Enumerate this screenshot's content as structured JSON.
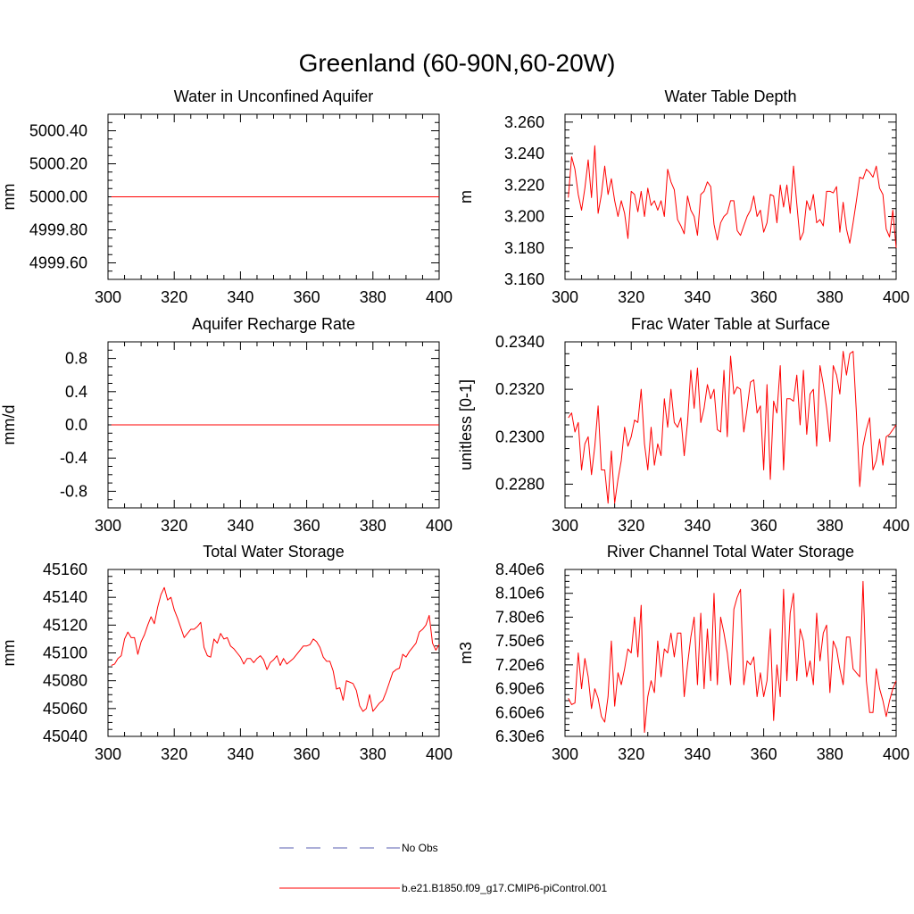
{
  "figure": {
    "title": "Greenland (60-90N,60-20W)"
  },
  "legend": {
    "entries": [
      {
        "label": "No Obs",
        "color": "#5a5fb0",
        "style": "dashed"
      },
      {
        "label": "b.e21.B1850.f09_g17.CMIP6-piControl.001",
        "color": "#ff0000",
        "style": "solid"
      }
    ]
  },
  "chart_data": [
    {
      "type": "line",
      "title": "Water in Unconfined Aquifer",
      "ylabel": "mm",
      "xlim": [
        300,
        400
      ],
      "ylim": [
        4999.5,
        5000.5
      ],
      "xticks": [
        300,
        320,
        340,
        360,
        380,
        400
      ],
      "xtick_labels": [
        "300",
        "320",
        "340",
        "360",
        "380",
        "400"
      ],
      "yticks": [
        4999.6,
        4999.8,
        5000.0,
        5000.2,
        5000.4
      ],
      "ytick_labels": [
        "4999.60",
        "4999.80",
        "5000.00",
        "5000.20",
        "5000.40"
      ],
      "series": [
        {
          "color": "#ff0000",
          "x_start": 301,
          "x_step": 1,
          "values": [
            5000,
            5000,
            5000,
            5000,
            5000,
            5000,
            5000,
            5000,
            5000,
            5000,
            5000,
            5000,
            5000,
            5000,
            5000,
            5000,
            5000,
            5000,
            5000,
            5000,
            5000,
            5000,
            5000,
            5000,
            5000,
            5000,
            5000,
            5000,
            5000,
            5000,
            5000,
            5000,
            5000,
            5000,
            5000,
            5000,
            5000,
            5000,
            5000,
            5000,
            5000,
            5000,
            5000,
            5000,
            5000,
            5000,
            5000,
            5000,
            5000,
            5000,
            5000,
            5000,
            5000,
            5000,
            5000,
            5000,
            5000,
            5000,
            5000,
            5000,
            5000,
            5000,
            5000,
            5000,
            5000,
            5000,
            5000,
            5000,
            5000,
            5000,
            5000,
            5000,
            5000,
            5000,
            5000,
            5000,
            5000,
            5000,
            5000,
            5000,
            5000,
            5000,
            5000,
            5000,
            5000,
            5000,
            5000,
            5000,
            5000,
            5000,
            5000,
            5000,
            5000,
            5000,
            5000,
            5000,
            5000,
            5000,
            5000,
            5000
          ]
        }
      ]
    },
    {
      "type": "line",
      "title": "Water Table Depth",
      "ylabel": "m",
      "xlim": [
        300,
        400
      ],
      "ylim": [
        3.16,
        3.265
      ],
      "xticks": [
        300,
        320,
        340,
        360,
        380,
        400
      ],
      "xtick_labels": [
        "300",
        "320",
        "340",
        "360",
        "380",
        "400"
      ],
      "yticks": [
        3.16,
        3.18,
        3.2,
        3.22,
        3.24,
        3.26
      ],
      "ytick_labels": [
        "3.160",
        "3.180",
        "3.200",
        "3.220",
        "3.240",
        "3.260"
      ],
      "series": [
        {
          "color": "#ff0000",
          "x_start": 301,
          "x_step": 1,
          "values": [
            3.212,
            3.238,
            3.23,
            3.214,
            3.204,
            3.218,
            3.236,
            3.212,
            3.245,
            3.202,
            3.214,
            3.232,
            3.214,
            3.224,
            3.21,
            3.2,
            3.21,
            3.202,
            3.186,
            3.216,
            3.214,
            3.203,
            3.216,
            3.2,
            3.218,
            3.207,
            3.21,
            3.204,
            3.21,
            3.2,
            3.23,
            3.222,
            3.217,
            3.198,
            3.194,
            3.189,
            3.213,
            3.204,
            3.2,
            3.188,
            3.214,
            3.216,
            3.222,
            3.219,
            3.195,
            3.185,
            3.196,
            3.2,
            3.202,
            3.21,
            3.21,
            3.191,
            3.188,
            3.194,
            3.2,
            3.204,
            3.213,
            3.2,
            3.204,
            3.19,
            3.196,
            3.214,
            3.213,
            3.196,
            3.22,
            3.206,
            3.22,
            3.202,
            3.232,
            3.208,
            3.185,
            3.19,
            3.21,
            3.204,
            3.214,
            3.196,
            3.198,
            3.194,
            3.216,
            3.216,
            3.215,
            3.219,
            3.19,
            3.209,
            3.192,
            3.183,
            3.196,
            3.21,
            3.225,
            3.224,
            3.23,
            3.228,
            3.225,
            3.232,
            3.218,
            3.214,
            3.192,
            3.187,
            3.204,
            3.18
          ]
        }
      ]
    },
    {
      "type": "line",
      "title": "Aquifer Recharge Rate",
      "ylabel": "mm/d",
      "xlim": [
        300,
        400
      ],
      "ylim": [
        -1,
        1
      ],
      "xticks": [
        300,
        320,
        340,
        360,
        380,
        400
      ],
      "xtick_labels": [
        "300",
        "320",
        "340",
        "360",
        "380",
        "400"
      ],
      "yticks": [
        -0.8,
        -0.4,
        0.0,
        0.4,
        0.8
      ],
      "ytick_labels": [
        "-0.8",
        "-0.4",
        "0.0",
        "0.4",
        "0.8"
      ],
      "series": [
        {
          "color": "#ff0000",
          "x_start": 301,
          "x_step": 1,
          "values": [
            0,
            0,
            0,
            0,
            0,
            0,
            0,
            0,
            0,
            0,
            0,
            0,
            0,
            0,
            0,
            0,
            0,
            0,
            0,
            0,
            0,
            0,
            0,
            0,
            0,
            0,
            0,
            0,
            0,
            0,
            0,
            0,
            0,
            0,
            0,
            0,
            0,
            0,
            0,
            0,
            0,
            0,
            0,
            0,
            0,
            0,
            0,
            0,
            0,
            0,
            0,
            0,
            0,
            0,
            0,
            0,
            0,
            0,
            0,
            0,
            0,
            0,
            0,
            0,
            0,
            0,
            0,
            0,
            0,
            0,
            0,
            0,
            0,
            0,
            0,
            0,
            0,
            0,
            0,
            0,
            0,
            0,
            0,
            0,
            0,
            0,
            0,
            0,
            0,
            0,
            0,
            0,
            0,
            0,
            0,
            0,
            0,
            0,
            0,
            0
          ]
        }
      ]
    },
    {
      "type": "line",
      "title": "Frac Water Table at Surface",
      "ylabel": "unitless [0-1]",
      "xlim": [
        300,
        400
      ],
      "ylim": [
        0.227,
        0.234
      ],
      "xticks": [
        300,
        320,
        340,
        360,
        380,
        400
      ],
      "xtick_labels": [
        "300",
        "320",
        "340",
        "360",
        "380",
        "400"
      ],
      "yticks": [
        0.228,
        0.23,
        0.232,
        0.234
      ],
      "ytick_labels": [
        "0.2280",
        "0.2300",
        "0.2320",
        "0.2340"
      ],
      "series": [
        {
          "color": "#ff0000",
          "x_start": 301,
          "x_step": 1,
          "values": [
            0.2308,
            0.231,
            0.2302,
            0.2306,
            0.2286,
            0.2297,
            0.23,
            0.2284,
            0.2296,
            0.2313,
            0.2286,
            0.2286,
            0.2272,
            0.2294,
            0.2272,
            0.2282,
            0.229,
            0.2304,
            0.2296,
            0.23,
            0.2307,
            0.2306,
            0.232,
            0.2297,
            0.2286,
            0.2304,
            0.2288,
            0.2297,
            0.2292,
            0.2316,
            0.2304,
            0.232,
            0.2306,
            0.2304,
            0.2308,
            0.2292,
            0.2306,
            0.2328,
            0.2312,
            0.2329,
            0.2306,
            0.2312,
            0.2322,
            0.2316,
            0.232,
            0.2303,
            0.2302,
            0.2328,
            0.23,
            0.2334,
            0.2318,
            0.2321,
            0.232,
            0.2302,
            0.2312,
            0.2323,
            0.2324,
            0.231,
            0.2313,
            0.2286,
            0.2322,
            0.2282,
            0.2315,
            0.231,
            0.233,
            0.2286,
            0.2316,
            0.2316,
            0.2315,
            0.2326,
            0.2305,
            0.2328,
            0.2301,
            0.2318,
            0.232,
            0.2296,
            0.233,
            0.2322,
            0.2312,
            0.2298,
            0.233,
            0.2326,
            0.2318,
            0.2336,
            0.2326,
            0.2335,
            0.2336,
            0.231,
            0.2279,
            0.2296,
            0.2303,
            0.2308,
            0.2286,
            0.229,
            0.2299,
            0.2288,
            0.23,
            0.2301,
            0.2303,
            0.2305
          ]
        }
      ]
    },
    {
      "type": "line",
      "title": "Total Water Storage",
      "ylabel": "mm",
      "xlim": [
        300,
        400
      ],
      "ylim": [
        45040,
        45160
      ],
      "xticks": [
        300,
        320,
        340,
        360,
        380,
        400
      ],
      "xtick_labels": [
        "300",
        "320",
        "340",
        "360",
        "380",
        "400"
      ],
      "yticks": [
        45040,
        45060,
        45080,
        45100,
        45120,
        45140,
        45160
      ],
      "ytick_labels": [
        "45040",
        "45060",
        "45080",
        "45100",
        "45120",
        "45140",
        "45160"
      ],
      "series": [
        {
          "color": "#ff0000",
          "x_start": 301,
          "x_step": 1,
          "values": [
            45091,
            45092,
            45096,
            45098,
            45110,
            45115,
            45111,
            45111,
            45099,
            45108,
            45113,
            45120,
            45126,
            45121,
            45133,
            45142,
            45147,
            45138,
            45140,
            45131,
            45125,
            45118,
            45111,
            45114,
            45117,
            45117,
            45119,
            45122,
            45104,
            45098,
            45097,
            45110,
            45107,
            45114,
            45110,
            45111,
            45105,
            45103,
            45100,
            45097,
            45092,
            45096,
            45096,
            45093,
            45096,
            45098,
            45095,
            45088,
            45093,
            45095,
            45098,
            45091,
            45096,
            45092,
            45094,
            45096,
            45099,
            45102,
            45105,
            45105,
            45106,
            45110,
            45108,
            45104,
            45097,
            45094,
            45094,
            45087,
            45074,
            45075,
            45066,
            45080,
            45079,
            45078,
            45073,
            45062,
            45058,
            45060,
            45070,
            45058,
            45061,
            45064,
            45066,
            45072,
            45079,
            45086,
            45088,
            45089,
            45099,
            45097,
            45101,
            45104,
            45107,
            45115,
            45117,
            45120,
            45127,
            45107,
            45102,
            45106
          ]
        }
      ]
    },
    {
      "type": "line",
      "title": "River Channel Total Water Storage",
      "ylabel": "m3",
      "xlim": [
        300,
        400
      ],
      "ylim": [
        6300000,
        8400000
      ],
      "xticks": [
        300,
        320,
        340,
        360,
        380,
        400
      ],
      "xtick_labels": [
        "300",
        "320",
        "340",
        "360",
        "380",
        "400"
      ],
      "yticks": [
        6300000,
        6600000,
        6900000,
        7200000,
        7500000,
        7800000,
        8100000,
        8400000
      ],
      "ytick_labels": [
        "6.30e6",
        "6.60e6",
        "6.90e6",
        "7.20e6",
        "7.50e6",
        "7.80e6",
        "8.10e6",
        "8.40e6"
      ],
      "series": [
        {
          "color": "#ff0000",
          "x_start": 301,
          "x_step": 1,
          "values": [
            6780000,
            6700000,
            6720000,
            7350000,
            6900000,
            7280000,
            7050000,
            6650000,
            6900000,
            6780000,
            6550000,
            6480000,
            6800000,
            7500000,
            6680000,
            7100000,
            6950000,
            7150000,
            7400000,
            7350000,
            7800000,
            7300000,
            7950000,
            6350000,
            6800000,
            7000000,
            6850000,
            7500000,
            7050000,
            7400000,
            7350000,
            7600000,
            7300000,
            7600000,
            7600000,
            6800000,
            7200000,
            7550000,
            7800000,
            6950000,
            7850000,
            6900000,
            7650000,
            7000000,
            8100000,
            6950000,
            7800000,
            7600000,
            7350000,
            6950000,
            7900000,
            8050000,
            8150000,
            6950000,
            7250000,
            7200000,
            7300000,
            6800000,
            7100000,
            6800000,
            7000000,
            7650000,
            6500000,
            7200000,
            6800000,
            8150000,
            7000000,
            7850000,
            8100000,
            7000000,
            7650000,
            7500000,
            7050000,
            7250000,
            6950000,
            7850000,
            7250000,
            7600000,
            7700000,
            6850000,
            7500000,
            7400000,
            7150000,
            6950000,
            7550000,
            7550000,
            7150000,
            7100000,
            7050000,
            8250000,
            7000000,
            6600000,
            6600000,
            7150000,
            6900000,
            6750000,
            6550000,
            6750000,
            6900000,
            7000000
          ]
        }
      ]
    }
  ]
}
